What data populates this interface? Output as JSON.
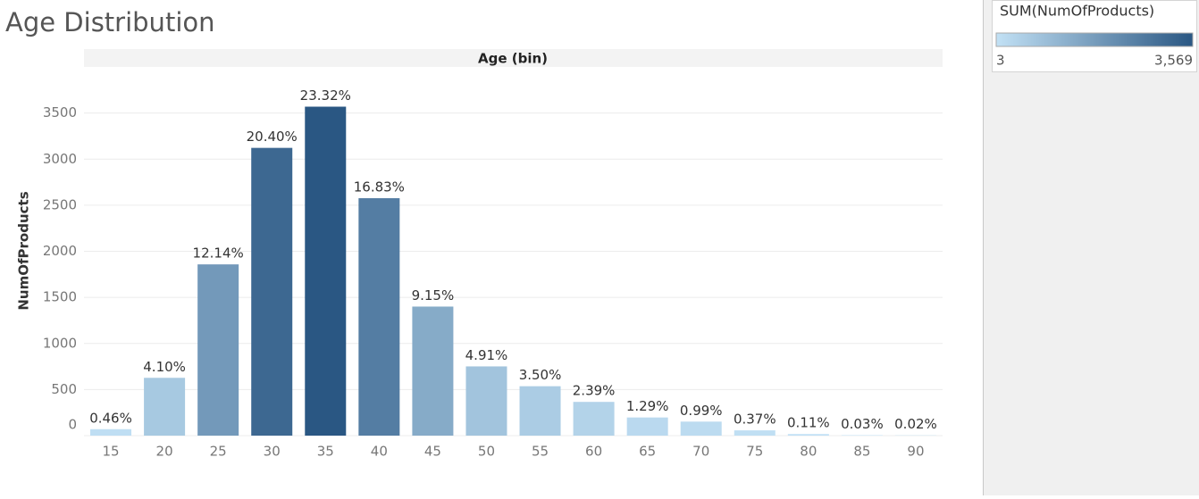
{
  "chart_data": {
    "type": "bar",
    "title": "Age Distribution",
    "x_header": "Age (bin)",
    "y_label": "NumOfProducts",
    "categories": [
      "15",
      "20",
      "25",
      "30",
      "35",
      "40",
      "45",
      "50",
      "55",
      "60",
      "65",
      "70",
      "75",
      "80",
      "85",
      "90"
    ],
    "values": [
      70,
      627,
      1858,
      3122,
      3569,
      2576,
      1400,
      751,
      536,
      366,
      197,
      152,
      57,
      17,
      5,
      3
    ],
    "value_labels": [
      "0.46%",
      "4.10%",
      "12.14%",
      "20.40%",
      "23.32%",
      "16.83%",
      "9.15%",
      "4.91%",
      "3.50%",
      "2.39%",
      "1.29%",
      "0.99%",
      "0.37%",
      "0.11%",
      "0.03%",
      "0.02%"
    ],
    "ylim": [
      0,
      4000
    ],
    "yticks": [
      0,
      500,
      1000,
      1500,
      2000,
      2500,
      3000,
      3500
    ],
    "grid": true,
    "color_legend": {
      "title": "SUM(NumOfProducts)",
      "range": [
        3,
        {
          "value": 3569,
          "label": "3,569"
        }
      ],
      "color_low": "#c2e1f5",
      "color_high": "#2a5783"
    }
  }
}
